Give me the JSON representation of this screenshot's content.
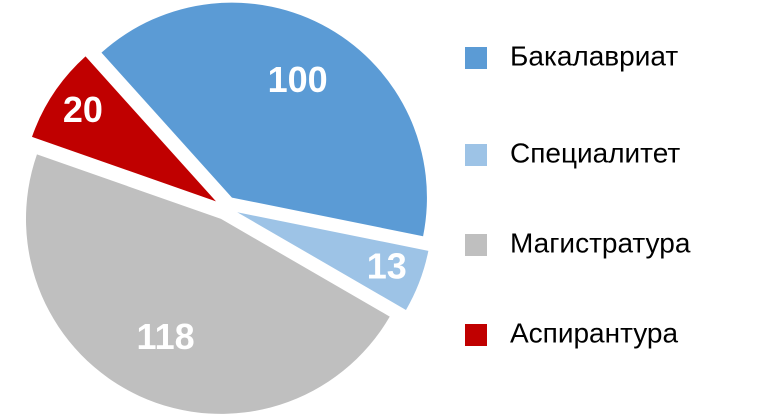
{
  "chart_data": {
    "type": "pie",
    "categories": [
      "Бакалавриат",
      "Специалитет",
      "Магистратура",
      "Аспирантура"
    ],
    "values": [
      100,
      13,
      118,
      20
    ],
    "colors": [
      "#5b9bd5",
      "#9dc3e6",
      "#bfbfbf",
      "#c00000"
    ],
    "legend": "right"
  }
}
